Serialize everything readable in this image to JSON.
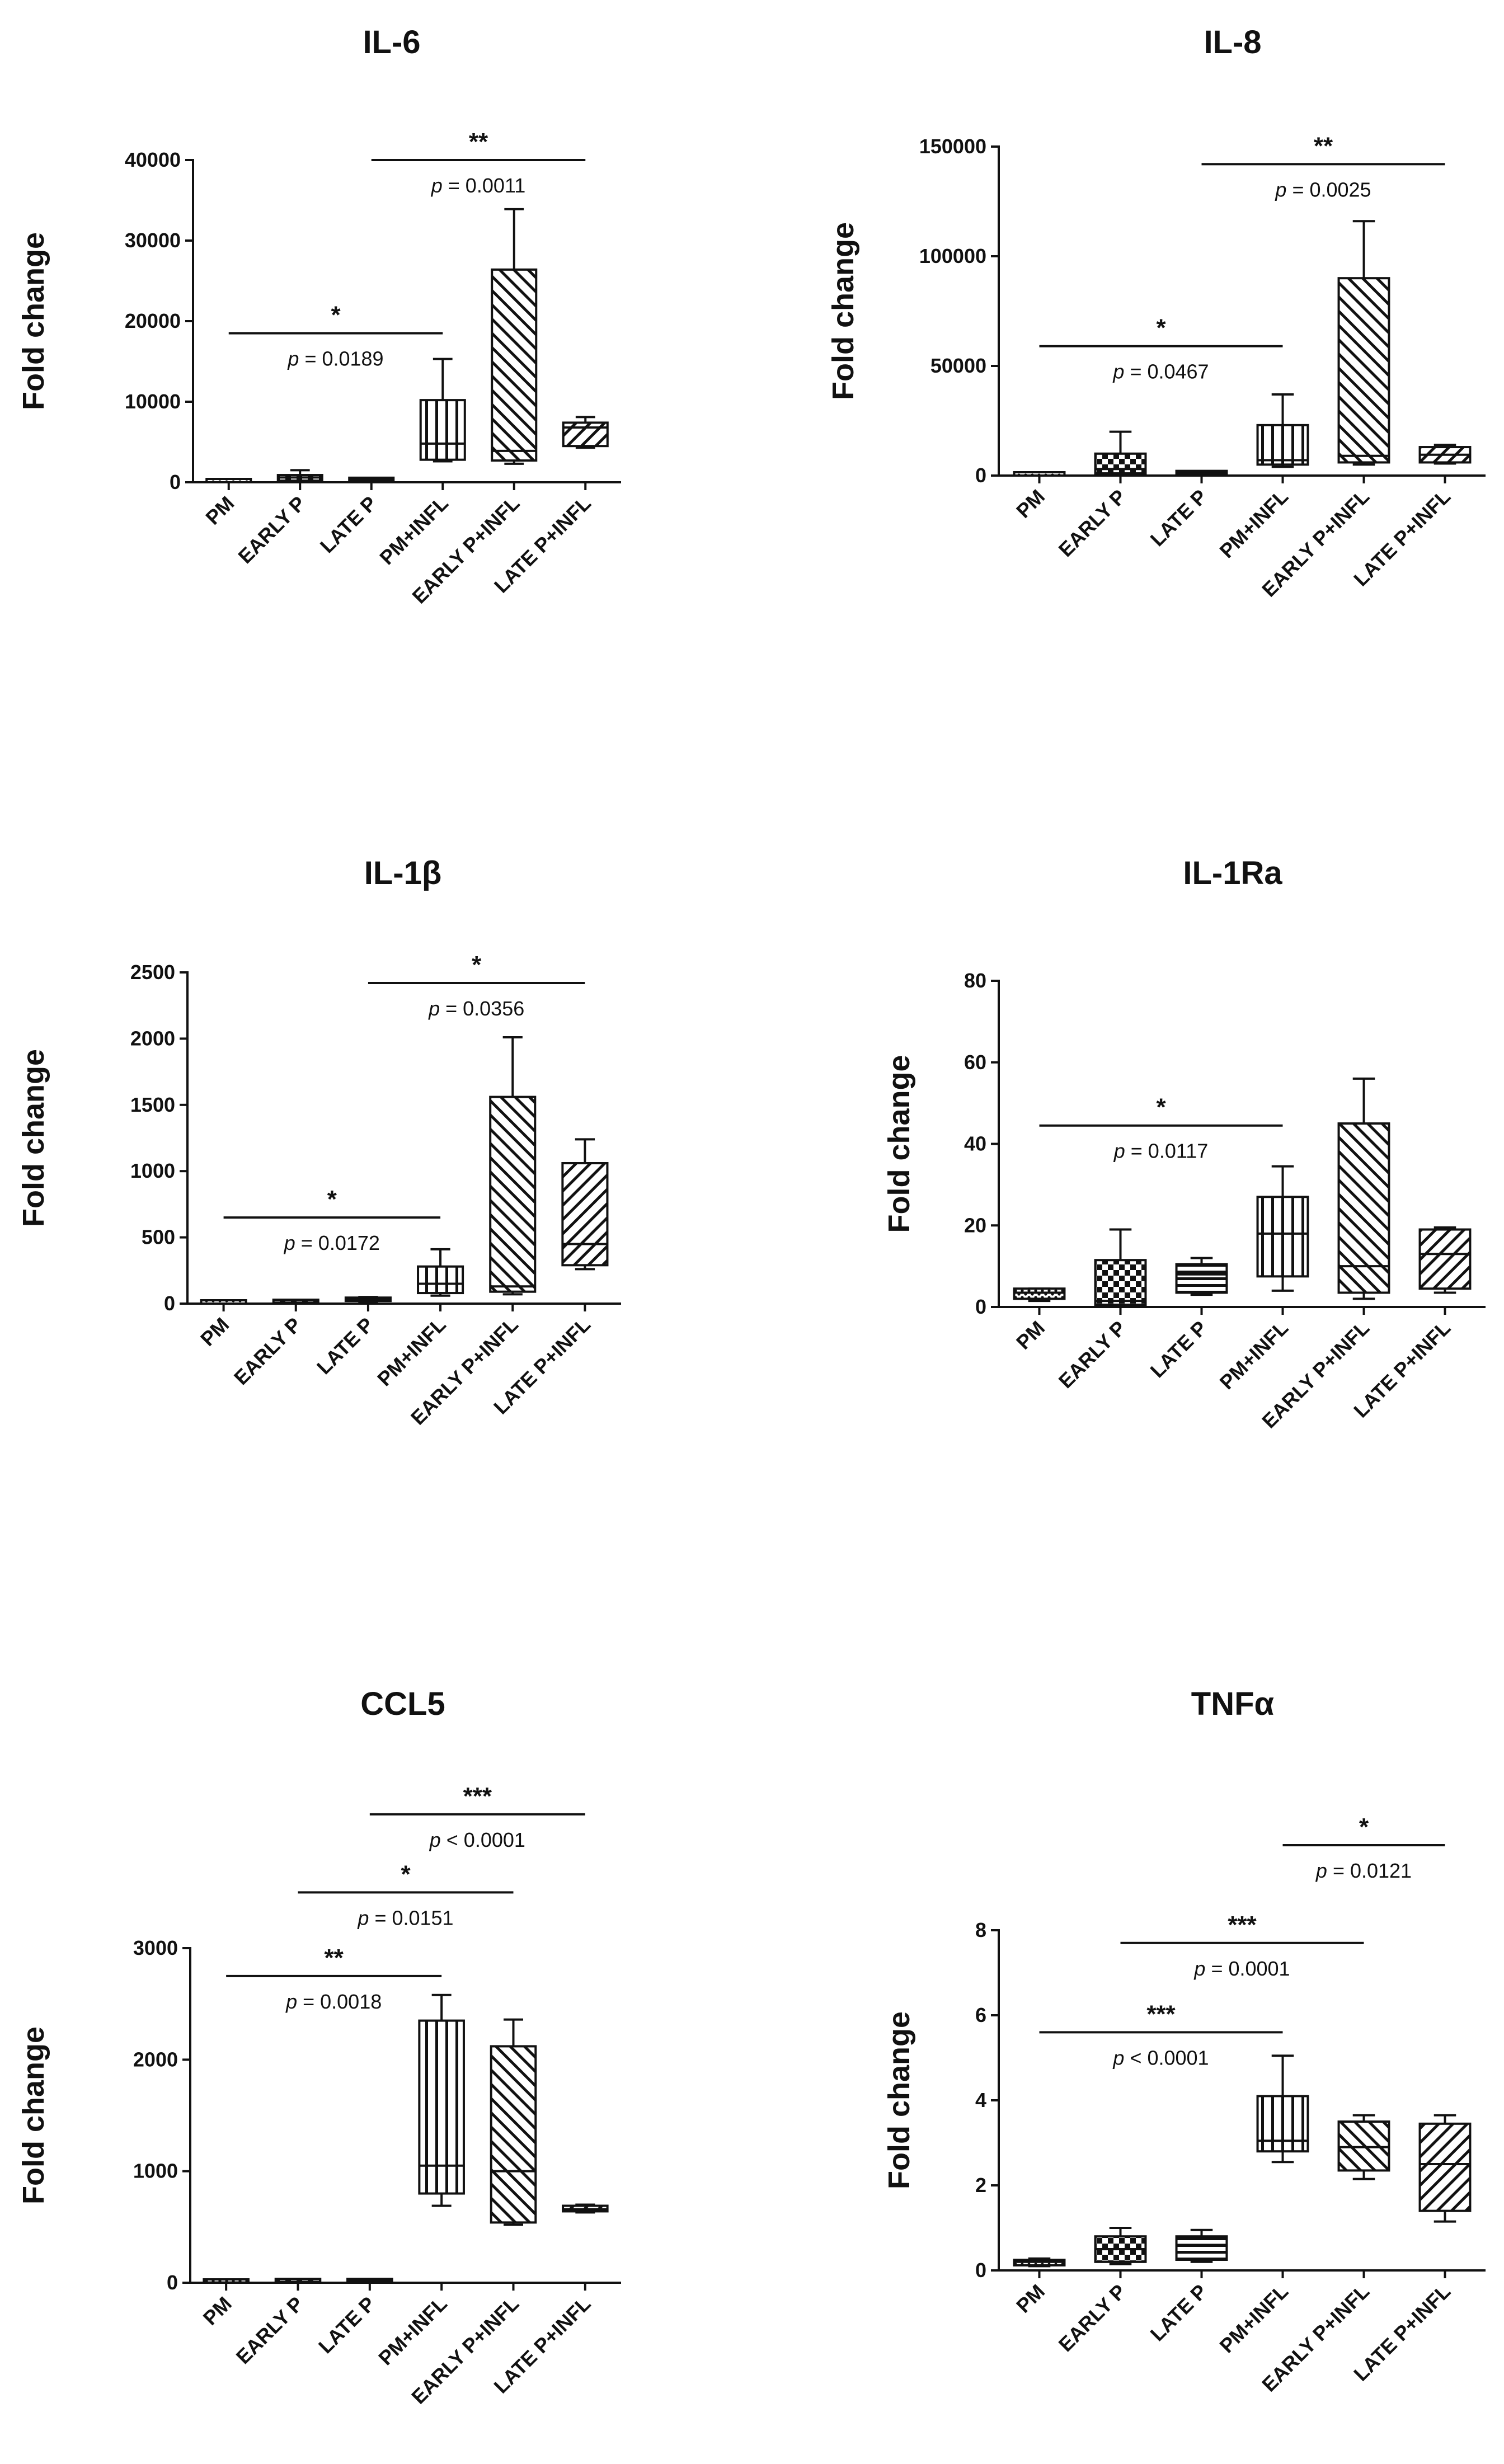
{
  "figure": {
    "colors": {
      "ink": "#111111",
      "background": "#ffffff"
    },
    "pattern_names": [
      "dots",
      "checker",
      "grid",
      "vertical-stripes",
      "diagonal-right",
      "diagonal-left",
      "horizontal-stripes"
    ]
  },
  "chart_data": [
    {
      "type": "box",
      "title": "IL-6",
      "ylabel": "Fold change",
      "xlabel": "",
      "ylim": [
        0,
        40000
      ],
      "yticks": [
        "0",
        "10000",
        "20000",
        "30000",
        "40000"
      ],
      "categories": [
        "PM",
        "EARLY P",
        "LATE P",
        "PM+INFL",
        "EARLY P+INFL",
        "LATE P+INFL"
      ],
      "patterns": [
        "dots",
        "checker",
        "horizontal-stripes",
        "vertical-stripes",
        "diagonal-right",
        "diagonal-left"
      ],
      "boxes": [
        {
          "min": 0,
          "q1": 0,
          "median": 0,
          "q3": 0,
          "max": 0
        },
        {
          "min": 100,
          "q1": 200,
          "median": 600,
          "q3": 900,
          "max": 1500
        },
        {
          "min": 100,
          "q1": 150,
          "median": 250,
          "q3": 350,
          "max": 450
        },
        {
          "min": 2600,
          "q1": 2800,
          "median": 4800,
          "q3": 10200,
          "max": 15300
        },
        {
          "min": 2300,
          "q1": 2700,
          "median": 3900,
          "q3": 26400,
          "max": 33900
        },
        {
          "min": 4300,
          "q1": 4500,
          "median": 6800,
          "q3": 7400,
          "max": 8100
        }
      ],
      "annotations": [
        {
          "from": 0,
          "to": 3,
          "y": 18500,
          "stars": "*",
          "p": "p = 0.0189"
        },
        {
          "from": 2,
          "to": 5,
          "y": 40000,
          "stars": "**",
          "p": "p = 0.0011"
        }
      ]
    },
    {
      "type": "box",
      "title": "IL-8",
      "ylabel": "Fold change",
      "xlabel": "",
      "ylim": [
        0,
        150000
      ],
      "yticks": [
        "0",
        "50000",
        "100000",
        "150000"
      ],
      "categories": [
        "PM",
        "EARLY P",
        "LATE P",
        "PM+INFL",
        "EARLY P+INFL",
        "LATE P+INFL"
      ],
      "patterns": [
        "dots",
        "checker",
        "horizontal-stripes",
        "vertical-stripes",
        "diagonal-right",
        "diagonal-left"
      ],
      "boxes": [
        {
          "min": 0,
          "q1": 0,
          "median": 0,
          "q3": 0,
          "max": 0
        },
        {
          "min": 500,
          "q1": 1000,
          "median": 3000,
          "q3": 10000,
          "max": 20000
        },
        {
          "min": 300,
          "q1": 600,
          "median": 1000,
          "q3": 1500,
          "max": 2000
        },
        {
          "min": 4000,
          "q1": 5000,
          "median": 7000,
          "q3": 23000,
          "max": 37000
        },
        {
          "min": 5000,
          "q1": 6000,
          "median": 9000,
          "q3": 90000,
          "max": 116000
        },
        {
          "min": 5500,
          "q1": 6000,
          "median": 9500,
          "q3": 13000,
          "max": 14000
        }
      ],
      "annotations": [
        {
          "from": 0,
          "to": 3,
          "y": 59000,
          "stars": "*",
          "p": "p = 0.0467"
        },
        {
          "from": 2,
          "to": 5,
          "y": 142000,
          "stars": "**",
          "p": "p = 0.0025"
        }
      ]
    },
    {
      "type": "box",
      "title": "IL-1β",
      "ylabel": "Fold change",
      "xlabel": "",
      "ylim": [
        0,
        2500
      ],
      "yticks": [
        "0",
        "500",
        "1000",
        "1500",
        "2000",
        "2500"
      ],
      "categories": [
        "PM",
        "EARLY P",
        "LATE P",
        "PM+INFL",
        "EARLY P+INFL",
        "LATE P+INFL"
      ],
      "patterns": [
        "dots",
        "checker",
        "horizontal-stripes",
        "vertical-stripes",
        "diagonal-right",
        "diagonal-left"
      ],
      "boxes": [
        {
          "min": 0,
          "q1": 0,
          "median": 0,
          "q3": 0,
          "max": 0
        },
        {
          "min": 2,
          "q1": 4,
          "median": 8,
          "q3": 12,
          "max": 18
        },
        {
          "min": 10,
          "q1": 20,
          "median": 30,
          "q3": 40,
          "max": 50
        },
        {
          "min": 60,
          "q1": 80,
          "median": 150,
          "q3": 280,
          "max": 410
        },
        {
          "min": 70,
          "q1": 90,
          "median": 130,
          "q3": 1560,
          "max": 2010
        },
        {
          "min": 260,
          "q1": 290,
          "median": 450,
          "q3": 1060,
          "max": 1240
        }
      ],
      "annotations": [
        {
          "from": 0,
          "to": 3,
          "y": 650,
          "stars": "*",
          "p": "p = 0.0172"
        },
        {
          "from": 2,
          "to": 5,
          "y": 2420,
          "stars": "*",
          "p": "p = 0.0356"
        }
      ]
    },
    {
      "type": "box",
      "title": "IL-1Ra",
      "ylabel": "Fold change",
      "xlabel": "",
      "ylim": [
        0,
        80
      ],
      "yticks": [
        "0",
        "20",
        "40",
        "60",
        "80"
      ],
      "categories": [
        "PM",
        "EARLY P",
        "LATE P",
        "PM+INFL",
        "EARLY P+INFL",
        "LATE P+INFL"
      ],
      "patterns": [
        "dots",
        "checker",
        "horizontal-stripes",
        "vertical-stripes",
        "diagonal-right",
        "diagonal-left"
      ],
      "boxes": [
        {
          "min": 1.5,
          "q1": 2,
          "median": 3.5,
          "q3": 4.5,
          "max": 4.5
        },
        {
          "min": 0,
          "q1": 0.5,
          "median": 1.5,
          "q3": 11.5,
          "max": 19
        },
        {
          "min": 3,
          "q1": 3.5,
          "median": 8,
          "q3": 10.5,
          "max": 12
        },
        {
          "min": 4,
          "q1": 7.5,
          "median": 18,
          "q3": 27,
          "max": 34.5
        },
        {
          "min": 2,
          "q1": 3.5,
          "median": 10,
          "q3": 45,
          "max": 56
        },
        {
          "min": 3.5,
          "q1": 4.5,
          "median": 13,
          "q3": 19,
          "max": 19.5
        }
      ],
      "annotations": [
        {
          "from": 0,
          "to": 3,
          "y": 44.5,
          "stars": "*",
          "p": "p = 0.0117"
        }
      ]
    },
    {
      "type": "box",
      "title": "CCL5",
      "ylabel": "Fold change",
      "xlabel": "",
      "ylim": [
        0,
        3000
      ],
      "yticks": [
        "0",
        "1000",
        "2000",
        "3000"
      ],
      "categories": [
        "PM",
        "EARLY P",
        "LATE P",
        "PM+INFL",
        "EARLY P+INFL",
        "LATE P+INFL"
      ],
      "patterns": [
        "dots",
        "checker",
        "horizontal-stripes",
        "vertical-stripes",
        "diagonal-right",
        "diagonal-left"
      ],
      "boxes": [
        {
          "min": 0,
          "q1": 0,
          "median": 2,
          "q3": 5,
          "max": 8
        },
        {
          "min": 2,
          "q1": 5,
          "median": 10,
          "q3": 20,
          "max": 30
        },
        {
          "min": 2,
          "q1": 5,
          "median": 10,
          "q3": 18,
          "max": 25
        },
        {
          "min": 690,
          "q1": 800,
          "median": 1050,
          "q3": 2350,
          "max": 2580
        },
        {
          "min": 520,
          "q1": 540,
          "median": 1000,
          "q3": 2120,
          "max": 2360
        },
        {
          "min": 630,
          "q1": 640,
          "median": 660,
          "q3": 690,
          "max": 700
        }
      ],
      "annotations": [
        {
          "from": 0,
          "to": 3,
          "y": 2750,
          "stars": "**",
          "p": "p = 0.0018"
        },
        {
          "from": 1,
          "to": 4,
          "y": 3500,
          "stars": "*",
          "p": "p = 0.0151"
        },
        {
          "from": 2,
          "to": 5,
          "y": 4200,
          "stars": "***",
          "p": "p < 0.0001"
        }
      ]
    },
    {
      "type": "box",
      "title": "TNFα",
      "ylabel": "Fold change",
      "xlabel": "",
      "ylim": [
        0,
        8
      ],
      "yticks": [
        "0",
        "2",
        "4",
        "6",
        "8"
      ],
      "categories": [
        "PM",
        "EARLY P",
        "LATE P",
        "PM+INFL",
        "EARLY P+INFL",
        "LATE P+INFL"
      ],
      "patterns": [
        "dots",
        "checker",
        "horizontal-stripes",
        "vertical-stripes",
        "diagonal-right",
        "diagonal-left"
      ],
      "boxes": [
        {
          "min": 0.1,
          "q1": 0.12,
          "median": 0.2,
          "q3": 0.25,
          "max": 0.28
        },
        {
          "min": 0.15,
          "q1": 0.2,
          "median": 0.5,
          "q3": 0.8,
          "max": 1.0
        },
        {
          "min": 0.2,
          "q1": 0.25,
          "median": 0.6,
          "q3": 0.8,
          "max": 0.95
        },
        {
          "min": 2.55,
          "q1": 2.8,
          "median": 3.05,
          "q3": 4.1,
          "max": 5.05
        },
        {
          "min": 2.15,
          "q1": 2.35,
          "median": 2.9,
          "q3": 3.5,
          "max": 3.65
        },
        {
          "min": 1.15,
          "q1": 1.4,
          "median": 2.5,
          "q3": 3.45,
          "max": 3.65
        }
      ],
      "annotations": [
        {
          "from": 0,
          "to": 3,
          "y": 5.6,
          "stars": "***",
          "p": "p < 0.0001"
        },
        {
          "from": 1,
          "to": 4,
          "y": 7.7,
          "stars": "***",
          "p": "p = 0.0001"
        },
        {
          "from": 3,
          "to": 5,
          "y": 10.0,
          "stars": "*",
          "p": "p = 0.0121"
        }
      ]
    }
  ]
}
